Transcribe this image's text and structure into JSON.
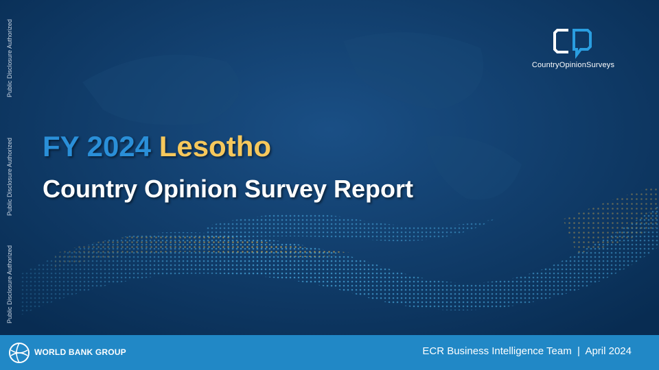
{
  "side_labels": [
    "Public Disclosure Authorized",
    "Public Disclosure Authorized",
    "Public Disclosure Authorized"
  ],
  "logo": {
    "text": "CountryOpinionSurveys"
  },
  "title": {
    "prefix": "FY 2024",
    "country": "Lesotho",
    "subtitle": "Country Opinion Survey Report"
  },
  "footer": {
    "organization": "WORLD BANK GROUP",
    "credit": "ECR Business Intelligence Team  |  April 2024"
  }
}
